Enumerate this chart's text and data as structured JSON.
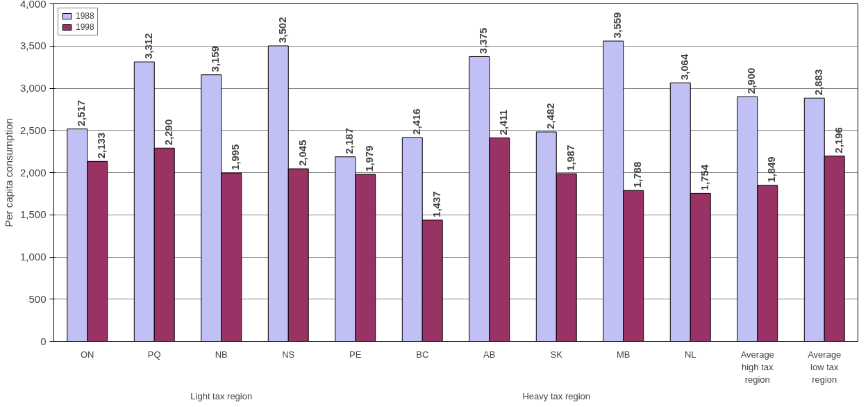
{
  "chart_data": {
    "type": "bar",
    "ylabel": "Per capita consumption",
    "categories": [
      "ON",
      "PQ",
      "NB",
      "NS",
      "PE",
      "BC",
      "AB",
      "SK",
      "MB",
      "NL",
      "Average high tax region",
      "Average low tax region"
    ],
    "series": [
      {
        "name": "1988",
        "color": "#c0c0f4",
        "values": [
          2517,
          3312,
          3159,
          3502,
          2187,
          2416,
          3375,
          2482,
          3559,
          3064,
          2900,
          2883
        ],
        "value_labels": [
          "2,517",
          "3,312",
          "3,159",
          "3,502",
          "2,187",
          "2,416",
          "3,375",
          "2,482",
          "3,559",
          "3,064",
          "2,900",
          "2,883"
        ]
      },
      {
        "name": "1998",
        "color": "#993366",
        "values": [
          2133,
          2290,
          1995,
          2045,
          1979,
          1437,
          2411,
          1987,
          1788,
          1754,
          1849,
          2196
        ],
        "value_labels": [
          "2,133",
          "2,290",
          "1,995",
          "2,045",
          "1,979",
          "1,437",
          "2,411",
          "1,987",
          "1,788",
          "1,754",
          "1,849",
          "2,196"
        ]
      }
    ],
    "ylim": [
      0,
      4000
    ],
    "yticks": [
      0,
      500,
      {
        "value": 1000,
        "label": "1,000"
      },
      {
        "value": 1500,
        "label": "1,500"
      },
      {
        "value": 2000,
        "label": "2,000"
      },
      {
        "value": 2500,
        "label": "2,500"
      },
      {
        "value": 3000,
        "label": "3,000"
      },
      {
        "value": 3500,
        "label": "3,500"
      },
      {
        "value": 4000,
        "label": "4,000"
      }
    ],
    "grid": "y",
    "legend": "top left",
    "annotations": [
      "Light tax region",
      "Heavy tax region"
    ]
  }
}
